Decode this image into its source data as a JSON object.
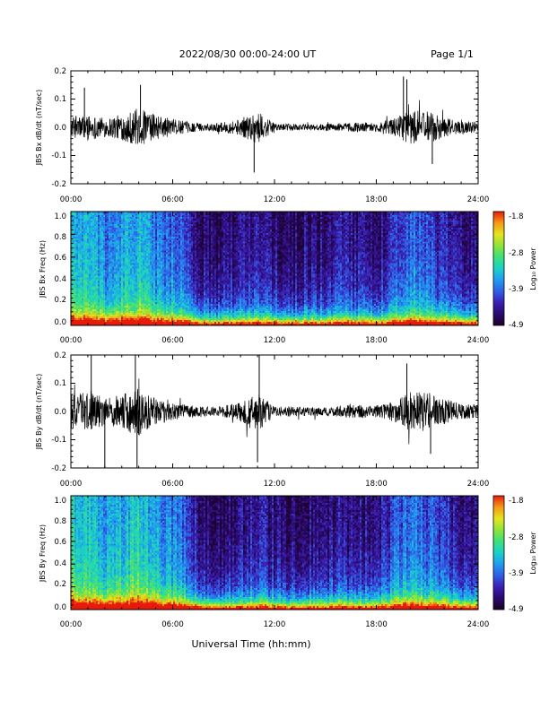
{
  "header": {
    "title": "2022/08/30  00:00-24:00 UT",
    "page": "Page 1/1"
  },
  "x_axis": {
    "ticks": [
      "00:00",
      "06:00",
      "12:00",
      "18:00",
      "24:00"
    ],
    "title": "Universal Time (hh:mm)"
  },
  "panels": {
    "bx_dbdt": {
      "ylabel": "JBS Bx dB/dt (nT/sec)",
      "yticks": [
        "0.2",
        "0.1",
        "0.0",
        "-0.1",
        "-0.2"
      ]
    },
    "bx_spec": {
      "ylabel": "JBS Bx Freq (Hz)",
      "yticks": [
        "1.0",
        "0.8",
        "0.6",
        "0.4",
        "0.2",
        "0.0"
      ],
      "cbar_label": "Log₁₀ Power",
      "cbar_ticks": [
        "-1.8",
        "-2.8",
        "-3.9",
        "-4.9"
      ]
    },
    "by_dbdt": {
      "ylabel": "JBS By dB/dt (nT/sec)",
      "yticks": [
        "0.2",
        "0.1",
        "0.0",
        "-0.1",
        "-0.2"
      ]
    },
    "by_spec": {
      "ylabel": "JBS By Freq (Hz)",
      "yticks": [
        "1.0",
        "0.8",
        "0.6",
        "0.4",
        "0.2",
        "0.0"
      ],
      "cbar_label": "Log₁₀ Power",
      "cbar_ticks": [
        "-1.8",
        "-2.8",
        "-3.9",
        "-4.9"
      ]
    }
  },
  "colors": {
    "trace": "#000000",
    "colormap": [
      "#1c0028",
      "#2a0a6e",
      "#3b1fb3",
      "#2f5fe6",
      "#1f9cf0",
      "#19d2c8",
      "#3ce07a",
      "#8ee33a",
      "#e4e51e",
      "#f59a14",
      "#e81a0c"
    ]
  },
  "chart_data": [
    {
      "type": "line",
      "name": "JBS Bx dB/dt",
      "x_range_hours": [
        0,
        24
      ],
      "ylim": [
        -0.2,
        0.2
      ],
      "ylabel": "JBS Bx dB/dt (nT/sec)",
      "activity_profile": {
        "hours": [
          0,
          1,
          2,
          3,
          4,
          5,
          6,
          7,
          8,
          9,
          10,
          11,
          12,
          13,
          14,
          15,
          16,
          17,
          18,
          19,
          20,
          21,
          22,
          23,
          24
        ],
        "amplitude": [
          0.035,
          0.045,
          0.035,
          0.045,
          0.07,
          0.045,
          0.03,
          0.018,
          0.012,
          0.018,
          0.03,
          0.06,
          0.012,
          0.012,
          0.01,
          0.012,
          0.015,
          0.018,
          0.015,
          0.03,
          0.06,
          0.06,
          0.035,
          0.02,
          0.02
        ]
      },
      "spikes": [
        {
          "hour": 0.8,
          "value": 0.14
        },
        {
          "hour": 4.1,
          "value": 0.15
        },
        {
          "hour": 10.8,
          "value": -0.16
        },
        {
          "hour": 19.6,
          "value": 0.18
        },
        {
          "hour": 19.8,
          "value": 0.17
        },
        {
          "hour": 21.3,
          "value": -0.13
        }
      ]
    },
    {
      "type": "heatmap",
      "name": "JBS Bx spectrogram",
      "x_range_hours": [
        0,
        24
      ],
      "ylim": [
        0.0,
        1.0
      ],
      "ylabel": "JBS Bx Freq (Hz)",
      "zlim": [
        -4.9,
        -1.8
      ],
      "zlabel": "Log₁₀ Power",
      "column_profile": {
        "hours": [
          0,
          1,
          2,
          3,
          4,
          5,
          6,
          7,
          7.5,
          8,
          9,
          10,
          11,
          12,
          13,
          14,
          15,
          16,
          17,
          18,
          19,
          20,
          21,
          22,
          23,
          24
        ],
        "power_at_1hz": [
          -3.6,
          -3.7,
          -3.9,
          -3.8,
          -3.5,
          -3.9,
          -4.0,
          -4.2,
          -4.6,
          -4.7,
          -4.7,
          -4.6,
          -4.5,
          -4.6,
          -4.7,
          -4.6,
          -4.6,
          -4.5,
          -4.6,
          -4.6,
          -4.3,
          -4.0,
          -4.2,
          -4.4,
          -4.6,
          -4.6
        ]
      }
    },
    {
      "type": "line",
      "name": "JBS By dB/dt",
      "x_range_hours": [
        0,
        24
      ],
      "ylim": [
        -0.2,
        0.2
      ],
      "ylabel": "JBS By dB/dt (nT/sec)",
      "activity_profile": {
        "hours": [
          0,
          1,
          2,
          3,
          4,
          5,
          6,
          7,
          8,
          9,
          10,
          11,
          12,
          13,
          14,
          15,
          16,
          17,
          18,
          19,
          20,
          21,
          22,
          23,
          24
        ],
        "amplitude": [
          0.06,
          0.07,
          0.05,
          0.06,
          0.09,
          0.045,
          0.03,
          0.022,
          0.016,
          0.02,
          0.035,
          0.07,
          0.018,
          0.018,
          0.016,
          0.016,
          0.022,
          0.025,
          0.022,
          0.035,
          0.07,
          0.07,
          0.045,
          0.028,
          0.025
        ]
      },
      "spikes": [
        {
          "hour": 1.2,
          "value": 0.2
        },
        {
          "hour": 2.0,
          "value": -0.2
        },
        {
          "hour": 3.8,
          "value": 0.2
        },
        {
          "hour": 3.9,
          "value": -0.2
        },
        {
          "hour": 11.1,
          "value": 0.2
        },
        {
          "hour": 11.0,
          "value": -0.18
        },
        {
          "hour": 19.8,
          "value": 0.17
        },
        {
          "hour": 21.2,
          "value": -0.15
        }
      ]
    },
    {
      "type": "heatmap",
      "name": "JBS By spectrogram",
      "x_range_hours": [
        0,
        24
      ],
      "ylim": [
        0.0,
        1.0
      ],
      "ylabel": "JBS By Freq (Hz)",
      "zlim": [
        -4.9,
        -1.8
      ],
      "zlabel": "Log₁₀ Power",
      "column_profile": {
        "hours": [
          0,
          1,
          2,
          3,
          4,
          5,
          6,
          7,
          7.5,
          8,
          9,
          10,
          11,
          12,
          13,
          14,
          15,
          16,
          17,
          18,
          19,
          20,
          21,
          22,
          23,
          24
        ],
        "power_at_1hz": [
          -3.4,
          -3.5,
          -3.7,
          -3.6,
          -3.3,
          -3.8,
          -3.9,
          -4.1,
          -4.6,
          -4.7,
          -4.7,
          -4.6,
          -4.4,
          -4.6,
          -4.7,
          -4.6,
          -4.6,
          -4.5,
          -4.6,
          -4.6,
          -4.2,
          -3.9,
          -4.1,
          -4.3,
          -4.6,
          -4.6
        ]
      }
    }
  ]
}
